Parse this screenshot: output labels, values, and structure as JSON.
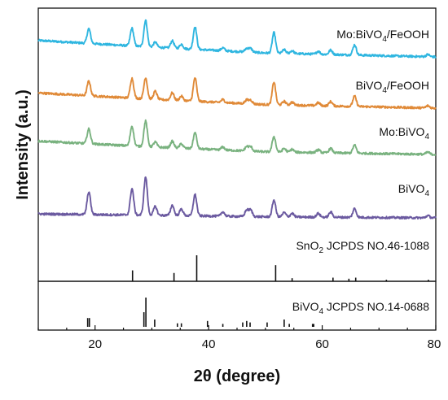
{
  "chart_data": {
    "type": "line",
    "xlabel": "2θ (degree)",
    "ylabel": "Intensity (a.u.)",
    "xlim": [
      10,
      80
    ],
    "xticks": [
      "20",
      "40",
      "60",
      "80"
    ],
    "colors": {
      "mo_bivo4_feooh": "#2fb6e0",
      "bivo4_feooh": "#e08a38",
      "mo_bivo4": "#79b27f",
      "bivo4": "#6b5aa0",
      "reference": "#111111"
    },
    "series": [
      {
        "key": "mo_bivo4_feooh",
        "name_parts": [
          "Mo:BiVO",
          "4",
          "/FeOOH"
        ],
        "baseline": [
          [
            10,
            0.92
          ],
          [
            30,
            0.55
          ],
          [
            50,
            0.22
          ],
          [
            80,
            0.0
          ]
        ],
        "peaks": [
          [
            18.9,
            1.0
          ],
          [
            26.5,
            1.2
          ],
          [
            28.9,
            1.8
          ],
          [
            30.6,
            0.35
          ],
          [
            33.6,
            0.5
          ],
          [
            35.2,
            0.3
          ],
          [
            37.6,
            1.55
          ],
          [
            42.5,
            0.2
          ],
          [
            46.7,
            0.25
          ],
          [
            47.4,
            0.25
          ],
          [
            51.5,
            1.4
          ],
          [
            53.3,
            0.25
          ],
          [
            54.7,
            0.2
          ],
          [
            59.3,
            0.2
          ],
          [
            61.5,
            0.3
          ],
          [
            65.7,
            0.7
          ],
          [
            78.6,
            0.15
          ]
        ]
      },
      {
        "key": "bivo4_feooh",
        "name_parts": [
          "BiVO",
          "4",
          "/FeOOH"
        ],
        "baseline": [
          [
            10,
            0.85
          ],
          [
            30,
            0.5
          ],
          [
            50,
            0.2
          ],
          [
            80,
            0.0
          ]
        ],
        "peaks": [
          [
            18.9,
            1.0
          ],
          [
            26.5,
            1.35
          ],
          [
            28.9,
            1.45
          ],
          [
            30.6,
            0.55
          ],
          [
            33.6,
            0.5
          ],
          [
            35.2,
            0.3
          ],
          [
            37.6,
            1.6
          ],
          [
            42.5,
            0.2
          ],
          [
            46.7,
            0.25
          ],
          [
            47.4,
            0.25
          ],
          [
            51.5,
            1.55
          ],
          [
            53.3,
            0.25
          ],
          [
            54.7,
            0.2
          ],
          [
            59.3,
            0.2
          ],
          [
            61.5,
            0.3
          ],
          [
            65.7,
            0.7
          ],
          [
            78.6,
            0.15
          ]
        ]
      },
      {
        "key": "mo_bivo4",
        "name_parts": [
          "Mo:BiVO",
          "4",
          ""
        ],
        "baseline": [
          [
            10,
            0.75
          ],
          [
            30,
            0.42
          ],
          [
            50,
            0.15
          ],
          [
            80,
            0.0
          ]
        ],
        "peaks": [
          [
            18.9,
            1.0
          ],
          [
            26.5,
            1.35
          ],
          [
            28.9,
            1.75
          ],
          [
            30.6,
            0.35
          ],
          [
            33.6,
            0.45
          ],
          [
            35.2,
            0.3
          ],
          [
            37.6,
            1.1
          ],
          [
            42.5,
            0.2
          ],
          [
            46.7,
            0.3
          ],
          [
            47.4,
            0.3
          ],
          [
            51.5,
            1.05
          ],
          [
            53.3,
            0.25
          ],
          [
            54.7,
            0.2
          ],
          [
            59.3,
            0.2
          ],
          [
            61.5,
            0.3
          ],
          [
            65.7,
            0.55
          ],
          [
            78.6,
            0.15
          ]
        ]
      },
      {
        "key": "bivo4",
        "name_parts": [
          "BiVO",
          "4",
          ""
        ],
        "baseline": [
          [
            10,
            0.22
          ],
          [
            30,
            0.15
          ],
          [
            50,
            0.06
          ],
          [
            80,
            0.0
          ]
        ],
        "peaks": [
          [
            18.9,
            1.55
          ],
          [
            26.5,
            1.8
          ],
          [
            28.9,
            2.6
          ],
          [
            30.6,
            0.6
          ],
          [
            33.6,
            0.7
          ],
          [
            35.2,
            0.45
          ],
          [
            37.6,
            1.45
          ],
          [
            42.5,
            0.3
          ],
          [
            46.7,
            0.45
          ],
          [
            47.4,
            0.45
          ],
          [
            51.5,
            1.15
          ],
          [
            53.3,
            0.3
          ],
          [
            54.7,
            0.25
          ],
          [
            59.3,
            0.25
          ],
          [
            61.5,
            0.35
          ],
          [
            65.7,
            0.6
          ],
          [
            78.6,
            0.15
          ]
        ]
      }
    ],
    "references": [
      {
        "key": "sno2",
        "name_parts": [
          "SnO",
          "2",
          " JCPDS NO.46-1088"
        ],
        "lines": [
          [
            26.6,
            0.42
          ],
          [
            33.9,
            0.32
          ],
          [
            37.9,
            1.0
          ],
          [
            51.8,
            0.62
          ],
          [
            54.7,
            0.12
          ],
          [
            61.9,
            0.14
          ],
          [
            64.7,
            0.1
          ],
          [
            65.9,
            0.14
          ],
          [
            71.3,
            0.06
          ],
          [
            78.7,
            0.06
          ]
        ]
      },
      {
        "key": "bivo4_ref",
        "name_parts": [
          "BiVO",
          "4",
          " JCPDS NO.14-0688"
        ],
        "lines": [
          [
            18.7,
            0.3
          ],
          [
            19.0,
            0.3
          ],
          [
            28.6,
            0.5
          ],
          [
            28.95,
            1.0
          ],
          [
            30.5,
            0.25
          ],
          [
            34.5,
            0.12
          ],
          [
            35.2,
            0.12
          ],
          [
            39.8,
            0.2
          ],
          [
            42.5,
            0.1
          ],
          [
            46.0,
            0.15
          ],
          [
            46.7,
            0.2
          ],
          [
            47.3,
            0.15
          ],
          [
            50.3,
            0.15
          ],
          [
            53.3,
            0.25
          ],
          [
            54.2,
            0.1
          ],
          [
            58.3,
            0.1
          ],
          [
            58.5,
            0.1
          ]
        ]
      }
    ]
  }
}
